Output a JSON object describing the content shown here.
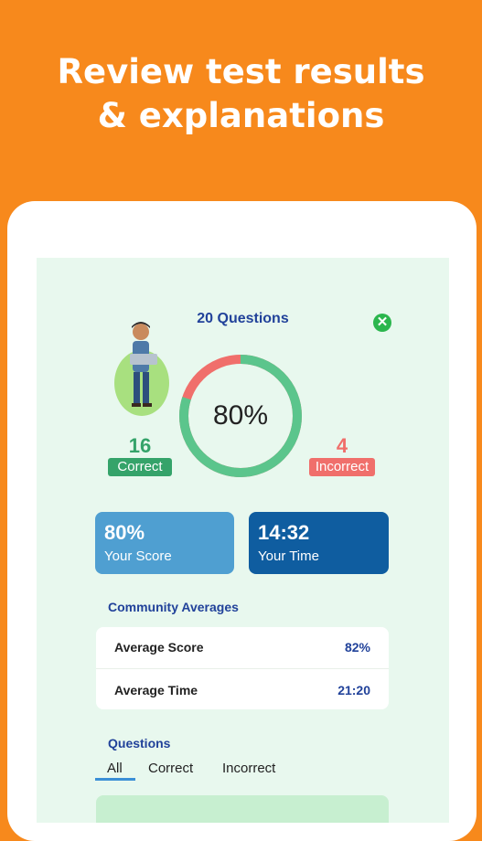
{
  "promo": {
    "line1": "Review test results",
    "line2": "& explanations"
  },
  "results": {
    "question_count": "20 Questions",
    "score_ring": "80%",
    "correct_count": "16",
    "correct_label": "Correct",
    "incorrect_count": "4",
    "incorrect_label": "Incorrect",
    "score_fraction": 0.8
  },
  "cards": {
    "score_value": "80%",
    "score_label": "Your Score",
    "time_value": "14:32",
    "time_label": "Your Time"
  },
  "community": {
    "title": "Community Averages",
    "rows": [
      {
        "label": "Average Score",
        "value": "82%"
      },
      {
        "label": "Average Time",
        "value": "21:20"
      }
    ]
  },
  "questions": {
    "title": "Questions",
    "tabs": [
      "All",
      "Correct",
      "Incorrect"
    ]
  },
  "colors": {
    "orange": "#f7891c",
    "green": "#5bc58c",
    "red": "#f06f6b",
    "blue_light": "#4f9fd1",
    "blue_dark": "#0f5da0"
  }
}
